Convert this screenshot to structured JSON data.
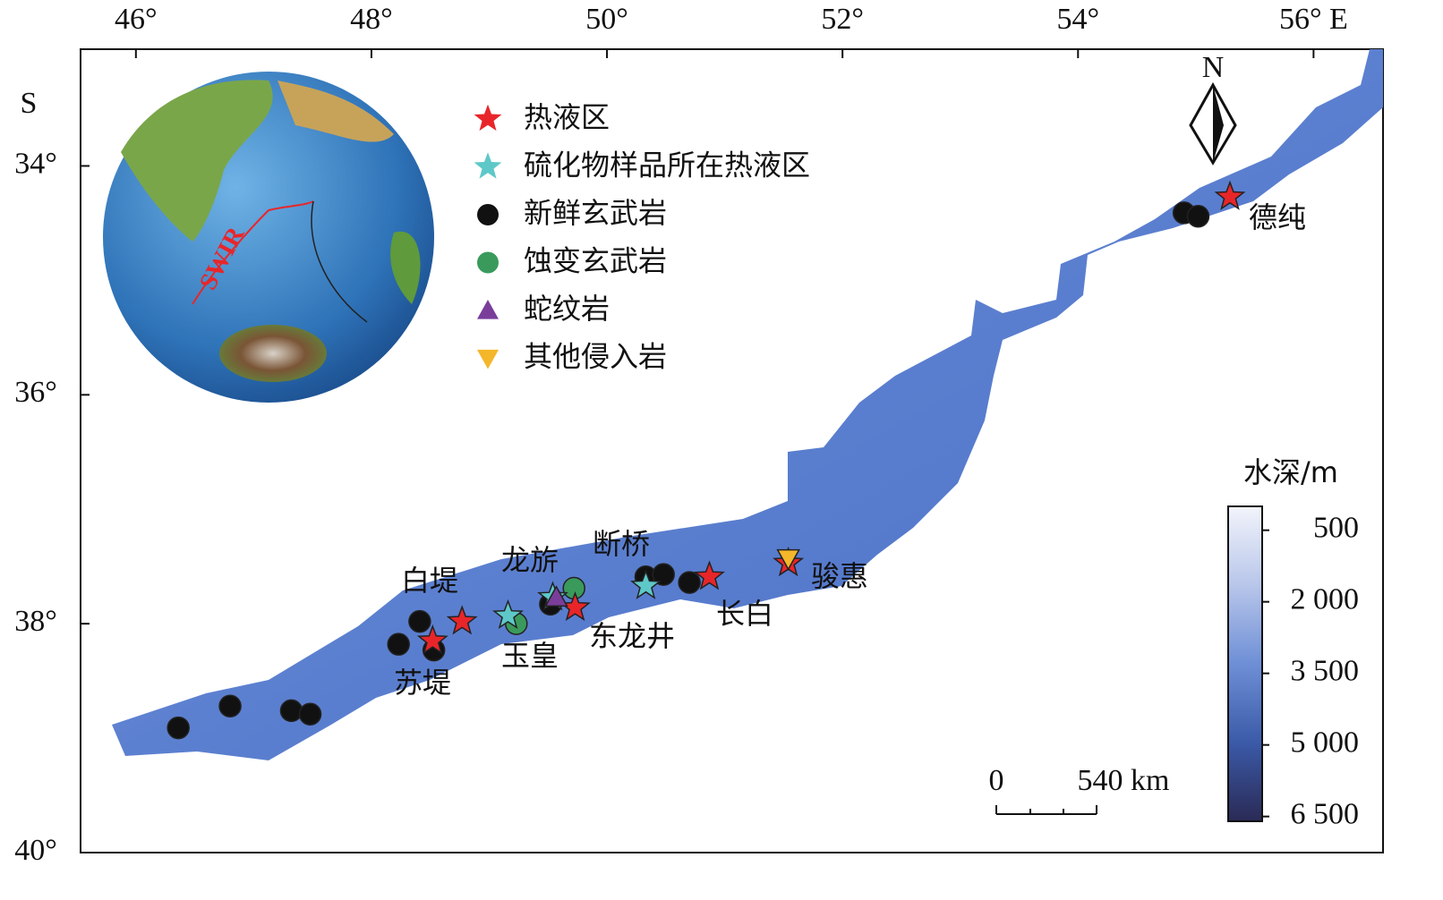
{
  "map": {
    "lonlim": [
      45.53,
      56.59
    ],
    "latlim": [
      32.98,
      40
    ],
    "lon_ticks": [
      {
        "value": 46,
        "label": "46°"
      },
      {
        "value": 48,
        "label": "48°"
      },
      {
        "value": 50,
        "label": "50°"
      },
      {
        "value": 52,
        "label": "52°"
      },
      {
        "value": 54,
        "label": "54°"
      },
      {
        "value": 56,
        "label": "56° E"
      }
    ],
    "lat_ticks": [
      {
        "value": 34,
        "label": "34°"
      },
      {
        "value": 36,
        "label": "36°"
      },
      {
        "value": 38,
        "label": "38°"
      },
      {
        "value": 40,
        "label": "40°"
      }
    ],
    "lat_hemisphere": "S",
    "north": "N",
    "globe_label": "SWIR",
    "legend": [
      {
        "label": "热液区",
        "symbol": "star",
        "color": "#e8262a"
      },
      {
        "label": "硫化物样品所在热液区",
        "symbol": "star",
        "color": "#5ec8c8"
      },
      {
        "label": "新鲜玄武岩",
        "symbol": "circle",
        "color": "#111111"
      },
      {
        "label": "蚀变玄武岩",
        "symbol": "circle",
        "color": "#3a9a5c"
      },
      {
        "label": "蛇纹岩",
        "symbol": "triangle",
        "color": "#7a3e9a"
      },
      {
        "label": "其他侵入岩",
        "symbol": "down-triangle",
        "color": "#f4b62a"
      }
    ],
    "points": [
      {
        "kind": 2,
        "lon": 46.36,
        "lat": 38.91
      },
      {
        "kind": 2,
        "lon": 46.8,
        "lat": 38.72
      },
      {
        "kind": 2,
        "lon": 47.32,
        "lat": 38.76
      },
      {
        "kind": 2,
        "lon": 47.48,
        "lat": 38.79
      },
      {
        "kind": 2,
        "lon": 48.23,
        "lat": 38.18
      },
      {
        "kind": 2,
        "lon": 48.41,
        "lat": 37.98
      },
      {
        "kind": 2,
        "lon": 48.53,
        "lat": 38.23
      },
      {
        "kind": 2,
        "lon": 49.52,
        "lat": 37.83
      },
      {
        "kind": 2,
        "lon": 50.33,
        "lat": 37.59
      },
      {
        "kind": 2,
        "lon": 50.48,
        "lat": 37.57
      },
      {
        "kind": 2,
        "lon": 50.7,
        "lat": 37.64
      },
      {
        "kind": 2,
        "lon": 54.9,
        "lat": 34.41
      },
      {
        "kind": 2,
        "lon": 55.02,
        "lat": 34.44
      },
      {
        "kind": 3,
        "lon": 49.23,
        "lat": 38.0
      },
      {
        "kind": 3,
        "lon": 49.72,
        "lat": 37.69
      },
      {
        "kind": 0,
        "lon": 55.29,
        "lat": 34.27
      },
      {
        "kind": 0,
        "lon": 48.77,
        "lat": 37.98
      },
      {
        "kind": 0,
        "lon": 48.52,
        "lat": 38.15
      },
      {
        "kind": 0,
        "lon": 49.73,
        "lat": 37.86
      },
      {
        "kind": 0,
        "lon": 50.87,
        "lat": 37.59
      },
      {
        "kind": 0,
        "lon": 51.54,
        "lat": 37.47
      },
      {
        "kind": 1,
        "lon": 49.16,
        "lat": 37.93
      },
      {
        "kind": 1,
        "lon": 49.54,
        "lat": 37.77
      },
      {
        "kind": 1,
        "lon": 50.33,
        "lat": 37.67
      },
      {
        "kind": 4,
        "lon": 49.57,
        "lat": 37.77
      },
      {
        "kind": 5,
        "lon": 51.54,
        "lat": 37.43
      }
    ],
    "sites": [
      "德纯",
      "断桥",
      "龙旂",
      "白堤",
      "玉皇",
      "东龙井",
      "苏堤",
      "长白",
      "骏惠"
    ],
    "colorbar": {
      "title": "水深/m",
      "clim": [
        0,
        6600
      ],
      "ticks": [
        500,
        {
          "value": 2000,
          "label": "2 000"
        },
        {
          "value": 3500,
          "label": "3 500"
        },
        {
          "value": 5000,
          "label": "5 000"
        },
        {
          "value": 6500,
          "label": "6 500"
        }
      ]
    },
    "scale_bar": [
      "0",
      "540 km"
    ]
  }
}
